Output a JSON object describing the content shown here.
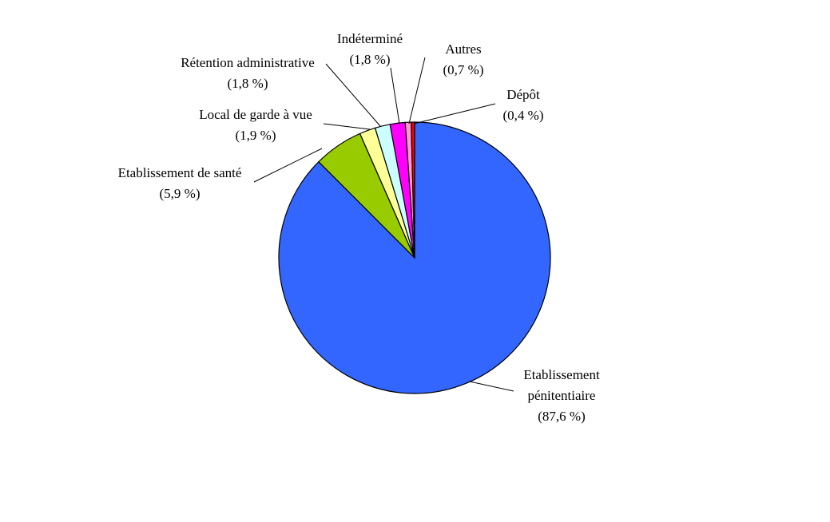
{
  "chart_data": {
    "type": "pie",
    "title": "",
    "start": "top",
    "direction": "clockwise",
    "slices": [
      {
        "label": [
          "Etablissement",
          "pénitentiaire"
        ],
        "value": 87.6,
        "value_label": "(87,6 %)",
        "color": "#3366FF"
      },
      {
        "label": [
          "Etablissement de santé"
        ],
        "value": 5.9,
        "value_label": "(5,9 %)",
        "color": "#99CC00"
      },
      {
        "label": [
          "Local de garde à vue"
        ],
        "value": 1.9,
        "value_label": "(1,9 %)",
        "color": "#FFFF99"
      },
      {
        "label": [
          "Rétention administrative"
        ],
        "value": 1.8,
        "value_label": "(1,8 %)",
        "color": "#CCFFFF"
      },
      {
        "label": [
          "Indéterminé"
        ],
        "value": 1.8,
        "value_label": "(1,8 %)",
        "color": "#FF00FF"
      },
      {
        "label": [
          "Autres"
        ],
        "value": 0.7,
        "value_label": "(0,7 %)",
        "color": "#FF99CC"
      },
      {
        "label": [
          "Dépôt"
        ],
        "value": 0.4,
        "value_label": "(0,4 %)",
        "color": "#FF0000"
      }
    ]
  }
}
